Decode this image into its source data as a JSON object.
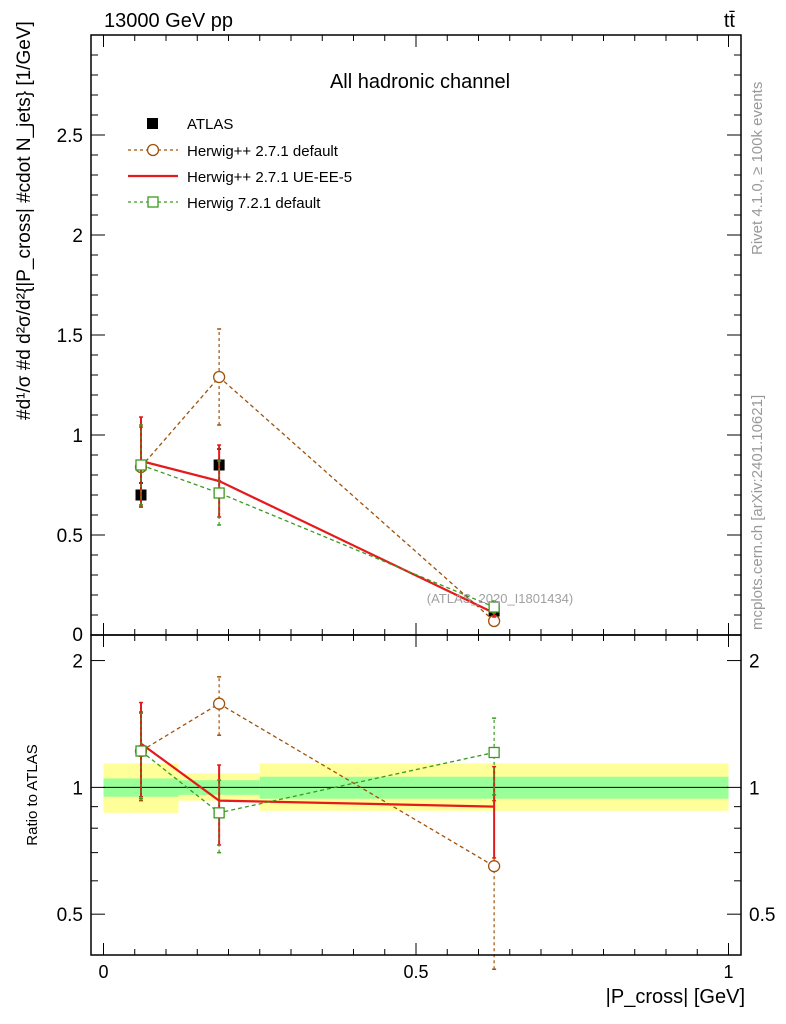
{
  "header": {
    "energy_label": "13000 GeV pp",
    "process_label": "tt̄"
  },
  "side_labels": {
    "rivet": "Rivet 4.1.0, ≥ 100k events",
    "mcplots": "mcplots.cern.ch [arXiv:2401.10621]"
  },
  "chart_data": [
    {
      "type": "line",
      "title": "All hadronic channel",
      "watermark": "(ATLAS_2020_I1801434)",
      "xlabel": "|P_cross| [GeV]",
      "ylabel": "#d¹/σ #d d²σ/d²{|P_cross| #cdot N_jets} [1/GeV]",
      "xlim": [
        -0.02,
        1.02
      ],
      "ylim": [
        0,
        3.0
      ],
      "yticks": [
        {
          "v": 0.5,
          "label": "0.5"
        },
        {
          "v": 1,
          "label": "1"
        },
        {
          "v": 1.5,
          "label": "1.5"
        },
        {
          "v": 2,
          "label": "2"
        },
        {
          "v": 2.5,
          "label": "2.5"
        }
      ],
      "bins": [
        [
          0,
          0.12
        ],
        [
          0.12,
          0.25
        ],
        [
          0.25,
          1.0
        ]
      ],
      "x": [
        0.06,
        0.185,
        0.625
      ],
      "series": [
        {
          "name": "ATLAS",
          "style": "data",
          "color": "#000000",
          "values": [
            0.7,
            0.85,
            0.12
          ],
          "err": [
            0.06,
            0.08,
            0.02
          ]
        },
        {
          "name": "Herwig++ 2.7.1 default",
          "style": "circle-dash",
          "color": "#a0520a",
          "values": [
            0.84,
            1.29,
            0.07
          ],
          "err": [
            0.2,
            0.24,
            0.02
          ]
        },
        {
          "name": "Herwig++ 2.7.1 UE-EE-5",
          "style": "solid",
          "color": "#e41a1c",
          "values": [
            0.87,
            0.77,
            0.11
          ],
          "err": [
            0.22,
            0.18,
            0.02
          ]
        },
        {
          "name": "Herwig 7.2.1 default",
          "style": "square-dash",
          "color": "#3a9a1e",
          "values": [
            0.85,
            0.71,
            0.14
          ],
          "err": [
            0.2,
            0.16,
            0.03
          ]
        }
      ]
    },
    {
      "type": "line",
      "title": "",
      "xlabel": "|P_cross| [GeV]",
      "ylabel": "Ratio to ATLAS",
      "yscale": "log",
      "xlim": [
        -0.02,
        1.02
      ],
      "ylim": [
        0.4,
        2.3
      ],
      "yticks": [
        {
          "v": 0.5,
          "label": "0.5"
        },
        {
          "v": 1,
          "label": "1"
        },
        {
          "v": 2,
          "label": "2"
        }
      ],
      "xticks": [
        {
          "v": 0,
          "label": "0"
        },
        {
          "v": 0.5,
          "label": "0.5"
        },
        {
          "v": 1,
          "label": "1"
        }
      ],
      "bands": {
        "inner": [
          [
            0.95,
            1.05
          ],
          [
            0.96,
            1.04
          ],
          [
            0.94,
            1.06
          ]
        ],
        "outer": [
          [
            0.87,
            1.14
          ],
          [
            0.93,
            1.08
          ],
          [
            0.88,
            1.14
          ]
        ]
      },
      "x": [
        0.06,
        0.185,
        0.625
      ],
      "series": [
        {
          "name": "Herwig++ 2.7.1 default",
          "style": "circle-dash",
          "color": "#a0520a",
          "values": [
            1.22,
            1.58,
            0.65
          ],
          "err": [
            0.29,
            0.25,
            0.28
          ]
        },
        {
          "name": "Herwig++ 2.7.1 UE-EE-5",
          "style": "solid",
          "color": "#e41a1c",
          "values": [
            1.27,
            0.93,
            0.9
          ],
          "err": [
            0.32,
            0.2,
            0.22
          ]
        },
        {
          "name": "Herwig 7.2.1 default",
          "style": "square-dash",
          "color": "#3a9a1e",
          "values": [
            1.22,
            0.87,
            1.21
          ],
          "err": [
            0.28,
            0.17,
            0.25
          ]
        }
      ]
    }
  ]
}
